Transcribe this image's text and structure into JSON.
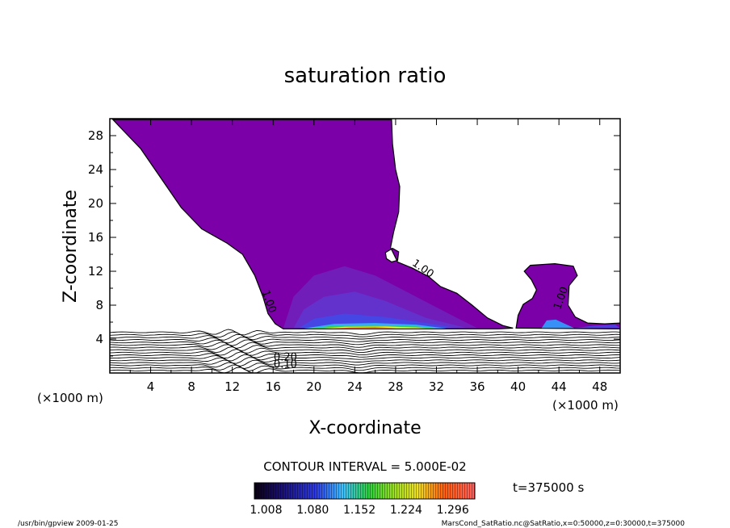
{
  "chart_data": {
    "type": "contour",
    "title": "saturation ratio",
    "xlabel": "X-coordinate",
    "ylabel": "Z-coordinate",
    "x_unit": "(×1000 m)",
    "z_unit": "(×1000 m)",
    "xlim": [
      0,
      50
    ],
    "ylim": [
      0,
      30
    ],
    "x_ticks": [
      4,
      8,
      12,
      16,
      20,
      24,
      28,
      32,
      36,
      40,
      44,
      48
    ],
    "y_ticks": [
      4,
      8,
      12,
      16,
      20,
      24,
      28
    ],
    "contour_interval_text": "CONTOUR INTERVAL = 5.000E-02",
    "time_text": "t=375000 s",
    "colorbar_ticks": [
      "1.008",
      "1.080",
      "1.152",
      "1.224",
      "1.296"
    ],
    "colorbar_range": [
      0.99,
      1.33
    ],
    "contour_labels": [
      {
        "text": "1.00",
        "x": 15.3,
        "y": 8.3
      },
      {
        "text": "1.00",
        "x": 30.5,
        "y": 12.0
      },
      {
        "text": "1.00",
        "x": 44.5,
        "y": 8.7
      },
      {
        "text": "0.20",
        "x": 17.2,
        "y": 1.5
      },
      {
        "text": "0.10",
        "x": 17.2,
        "y": 0.6
      }
    ],
    "supersaturated_region_outline": [
      [
        0.3,
        29.9
      ],
      [
        27.6,
        29.9
      ],
      [
        27.7,
        27.0
      ],
      [
        28.0,
        24.0
      ],
      [
        28.4,
        22.0
      ],
      [
        28.3,
        19.0
      ],
      [
        27.8,
        16.6
      ],
      [
        27.5,
        14.8
      ],
      [
        28.2,
        13.1
      ],
      [
        29.6,
        12.4
      ],
      [
        31.2,
        11.4
      ],
      [
        32.4,
        10.2
      ],
      [
        34.0,
        9.4
      ],
      [
        35.5,
        8.0
      ],
      [
        37.0,
        6.5
      ],
      [
        38.5,
        5.6
      ],
      [
        39.5,
        5.3
      ],
      [
        38.0,
        5.2
      ],
      [
        17.0,
        5.2
      ],
      [
        16.2,
        5.8
      ],
      [
        15.5,
        7.0
      ],
      [
        15.0,
        9.0
      ],
      [
        14.2,
        11.5
      ],
      [
        13.0,
        14.0
      ],
      [
        11.5,
        15.3
      ],
      [
        9.0,
        17.0
      ],
      [
        7.0,
        19.5
      ],
      [
        5.0,
        23.0
      ],
      [
        3.0,
        26.5
      ],
      [
        1.0,
        29.0
      ]
    ],
    "secondary_region_outline": [
      [
        39.8,
        5.3
      ],
      [
        40.0,
        6.8
      ],
      [
        40.5,
        8.1
      ],
      [
        41.4,
        8.8
      ],
      [
        41.8,
        9.8
      ],
      [
        41.3,
        11.0
      ],
      [
        40.6,
        12.0
      ],
      [
        41.2,
        12.7
      ],
      [
        43.6,
        12.9
      ],
      [
        45.4,
        12.6
      ],
      [
        45.8,
        11.5
      ],
      [
        45.0,
        10.3
      ],
      [
        44.9,
        8.0
      ],
      [
        45.6,
        6.6
      ],
      [
        46.8,
        5.9
      ],
      [
        48.5,
        5.8
      ],
      [
        50.0,
        5.9
      ],
      [
        50.0,
        5.2
      ]
    ],
    "hole_outline": [
      [
        27.0,
        14.2
      ],
      [
        27.7,
        14.7
      ],
      [
        28.3,
        14.3
      ],
      [
        28.2,
        13.3
      ],
      [
        27.6,
        13.1
      ],
      [
        27.1,
        13.5
      ]
    ],
    "subsaturated_contours_z": [
      0.3,
      0.6,
      0.9,
      1.2,
      1.5,
      1.8,
      2.1,
      2.4,
      2.7,
      3.0,
      3.3,
      3.6,
      3.9,
      4.2,
      4.5,
      4.8
    ]
  },
  "footer": {
    "left": "/usr/bin/gpview   2009-01-25",
    "right": "MarsCond_SatRatio.nc@SatRatio,x=0:50000,z=0:30000,t=375000"
  }
}
